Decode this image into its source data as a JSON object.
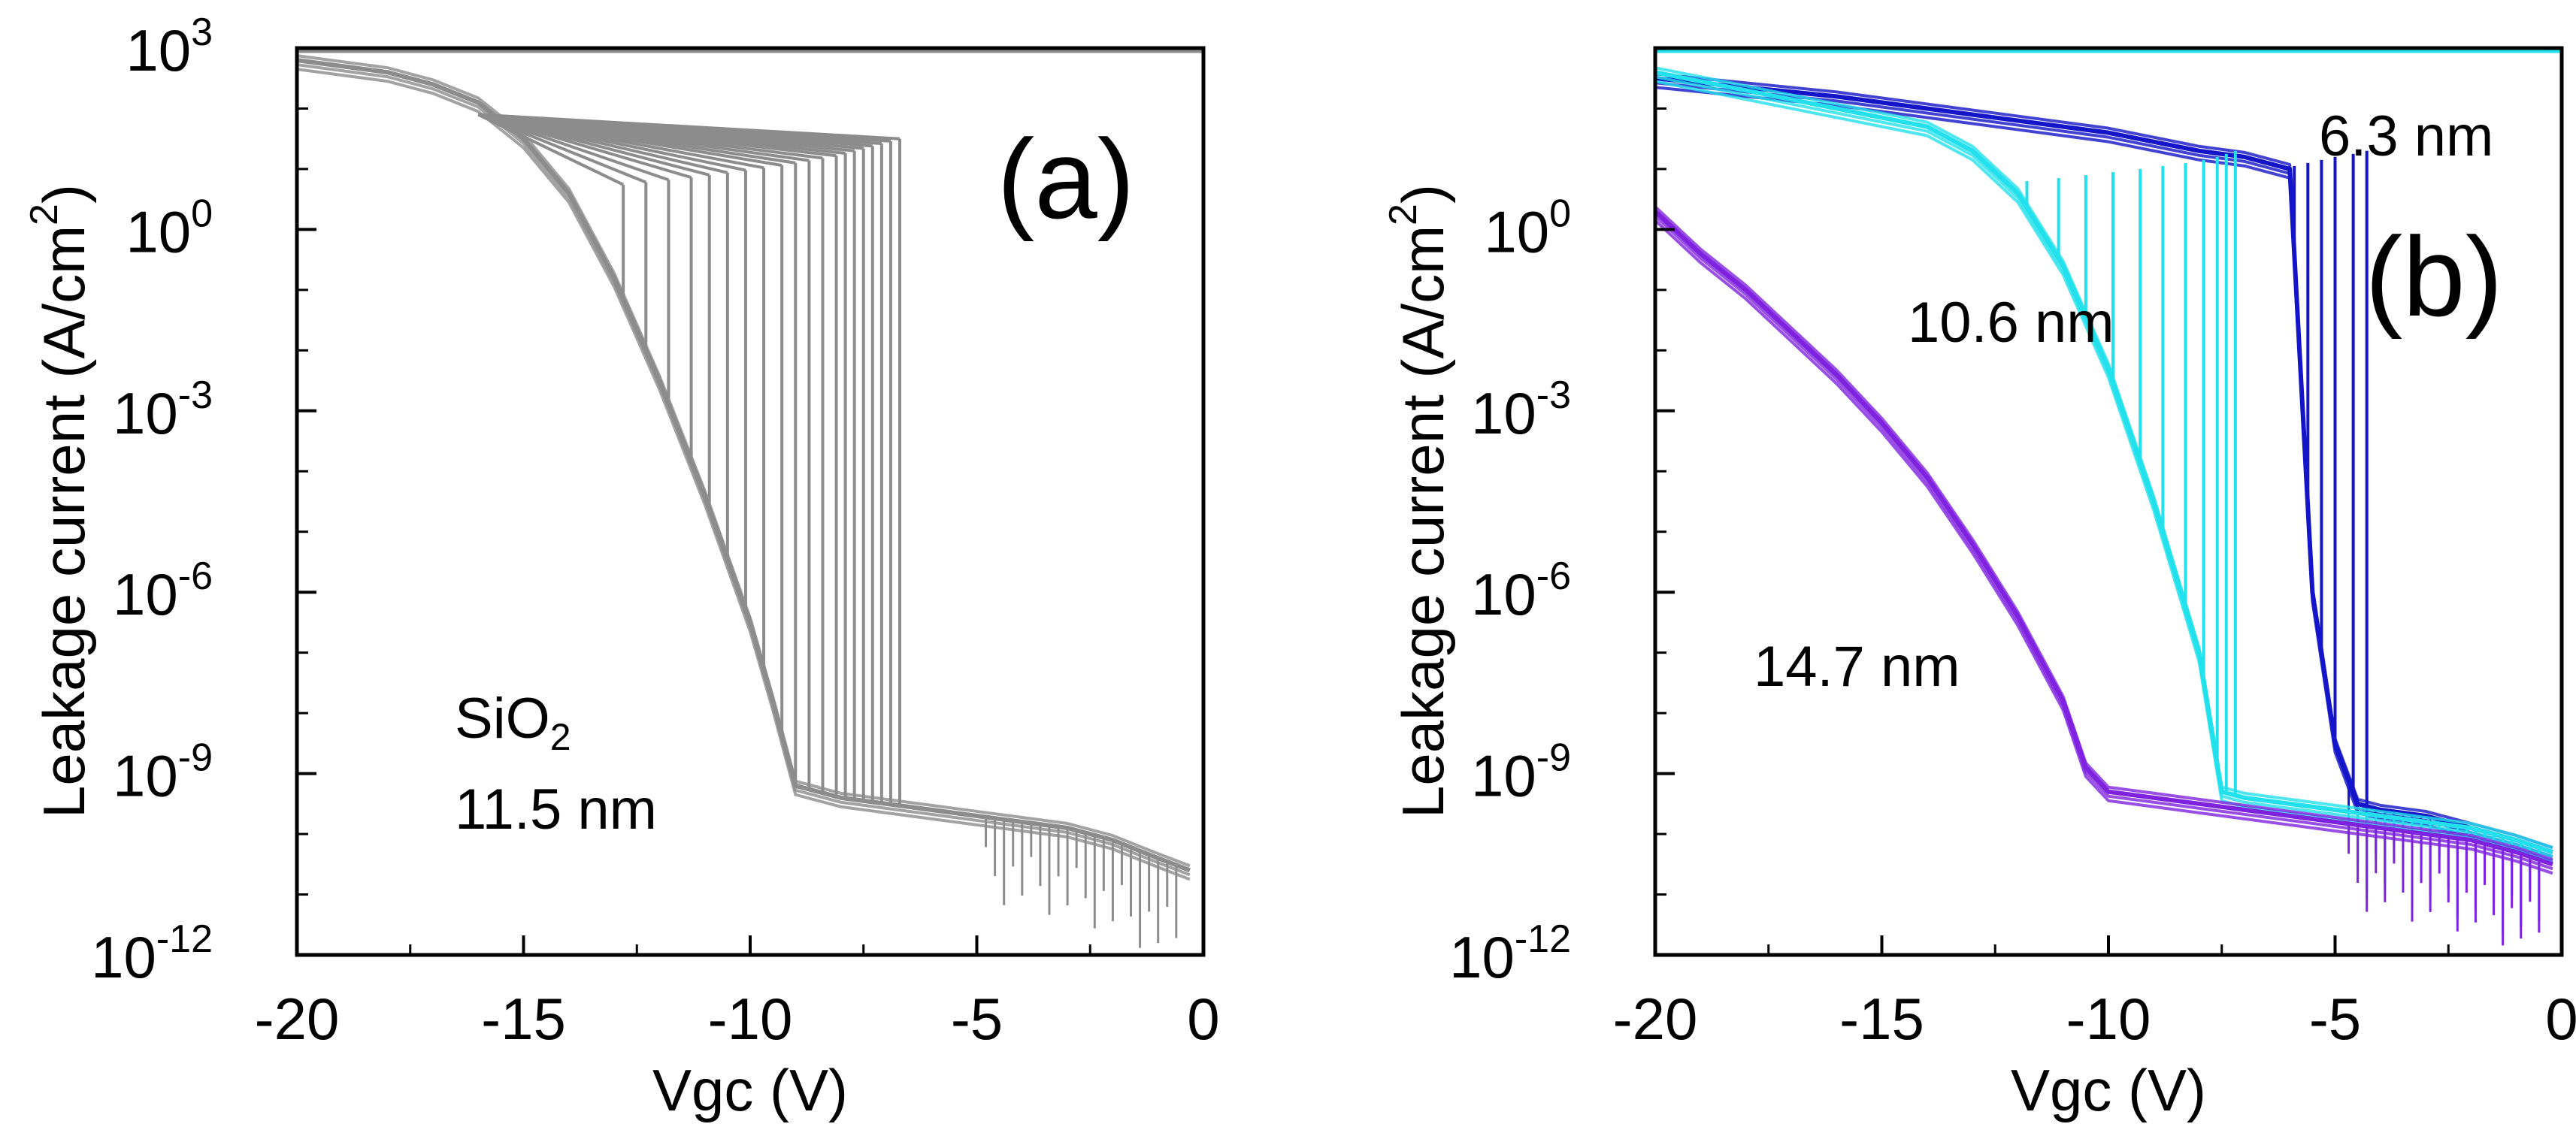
{
  "chart_data": [
    {
      "type": "line",
      "panel_label": "(a)",
      "xlabel": "Vgc (V)",
      "ylabel": "Leakage current (A/cm",
      "ylabel_sup": "2",
      "ylabel_close": ")",
      "xlim": [
        -20,
        0
      ],
      "ylim_log10": [
        -12,
        3
      ],
      "x_ticks": [
        {
          "v": -20,
          "label": "-20"
        },
        {
          "v": -15,
          "label": "-15"
        },
        {
          "v": -10,
          "label": "-10"
        },
        {
          "v": -5,
          "label": "-5"
        },
        {
          "v": 0,
          "label": "0"
        }
      ],
      "y_ticks": [
        {
          "exp": 3,
          "base": "10",
          "sup": "3"
        },
        {
          "exp": 0,
          "base": "10",
          "sup": "0"
        },
        {
          "exp": -3,
          "base": "10",
          "sup": "-3"
        },
        {
          "exp": -6,
          "base": "10",
          "sup": "-6"
        },
        {
          "exp": -9,
          "base": "10",
          "sup": "-9"
        },
        {
          "exp": -12,
          "base": "10",
          "sup": "-12"
        }
      ],
      "annotations": [
        {
          "id": "material",
          "text": "SiO",
          "sub": "2"
        },
        {
          "id": "thickness",
          "text": "11.5 nm"
        }
      ],
      "series": [
        {
          "name": "SiO2 11.5 nm",
          "color": "#8c8c8c",
          "x": [
            -20,
            -19,
            -18,
            -17,
            -16,
            -15,
            -14,
            -13,
            -12,
            -11,
            -10,
            -9.5,
            -9,
            -8,
            -7,
            -6,
            -5,
            -4,
            -3,
            -2,
            -1,
            -0.3
          ],
          "log10_J": [
            2.8,
            2.7,
            2.6,
            2.4,
            2.1,
            1.5,
            0.6,
            -0.8,
            -2.5,
            -4.4,
            -6.5,
            -7.8,
            -9.2,
            -9.4,
            -9.5,
            -9.6,
            -9.7,
            -9.8,
            -9.9,
            -10.1,
            -10.4,
            -10.6
          ],
          "breakdown_V": [
            -6.7,
            -6.9,
            -7.1,
            -7.3,
            -7.5,
            -7.7,
            -7.9,
            -8.1,
            -8.4,
            -8.7,
            -9.0,
            -9.3,
            -9.7,
            -10.1,
            -10.5,
            -10.9,
            -11.3,
            -11.8,
            -12.3,
            -12.8
          ],
          "pre_breakdown_log10_J": 1.5,
          "compliance_log10_J": 3
        }
      ]
    },
    {
      "type": "line",
      "panel_label": "(b)",
      "xlabel": "Vgc (V)",
      "ylabel": "Leakage current (A/cm",
      "ylabel_sup": "2",
      "ylabel_close": ")",
      "xlim": [
        -20,
        0
      ],
      "ylim_log10": [
        -12,
        3
      ],
      "x_ticks": [
        {
          "v": -20,
          "label": "-20"
        },
        {
          "v": -15,
          "label": "-15"
        },
        {
          "v": -10,
          "label": "-10"
        },
        {
          "v": -5,
          "label": "-5"
        },
        {
          "v": 0,
          "label": "0"
        }
      ],
      "y_ticks": [
        {
          "exp": 0,
          "base": "10",
          "sup": "0"
        },
        {
          "exp": -3,
          "base": "10",
          "sup": "-3"
        },
        {
          "exp": -6,
          "base": "10",
          "sup": "-6"
        },
        {
          "exp": -9,
          "base": "10",
          "sup": "-9"
        },
        {
          "exp": -12,
          "base": "10",
          "sup": "-12"
        }
      ],
      "annotations": [
        {
          "id": "label-6-3",
          "text": "6.3 nm"
        },
        {
          "id": "label-10-6",
          "text": "10.6 nm"
        },
        {
          "id": "label-14-7",
          "text": "14.7 nm"
        }
      ],
      "series": [
        {
          "name": "6.3 nm",
          "color": "#1414c8",
          "x": [
            -20,
            -16,
            -14,
            -12,
            -10,
            -8,
            -7,
            -6,
            -5.5,
            -5,
            -4.5,
            -4,
            -3,
            -2,
            -1,
            -0.2
          ],
          "log10_J": [
            2.5,
            2.2,
            2.0,
            1.8,
            1.6,
            1.3,
            1.2,
            1.0,
            -6,
            -8.5,
            -9.5,
            -9.6,
            -9.7,
            -9.9,
            -10.1,
            -10.3
          ],
          "breakdown_V": [
            -4.3,
            -4.6,
            -5.0,
            -5.3,
            -5.6,
            -5.9,
            -6.2,
            -6.5,
            -6.8
          ],
          "compliance_log10_J": 3
        },
        {
          "name": "10.6 nm",
          "color": "#22e1ec",
          "x": [
            -20,
            -18,
            -16,
            -14,
            -13,
            -12,
            -11,
            -10,
            -9,
            -8,
            -7.5,
            -7,
            -6,
            -5,
            -4,
            -3,
            -2,
            -1,
            -0.2
          ],
          "log10_J": [
            2.6,
            2.3,
            2.0,
            1.7,
            1.3,
            0.6,
            -0.6,
            -2.3,
            -4.5,
            -7.0,
            -9.3,
            -9.4,
            -9.5,
            -9.6,
            -9.7,
            -9.8,
            -9.9,
            -10.1,
            -10.3
          ],
          "breakdown_V": [
            -7.2,
            -7.4,
            -7.6,
            -7.9,
            -8.3,
            -8.8,
            -9.3,
            -9.9,
            -10.5,
            -11.1,
            -11.8,
            -12.6,
            -13.4,
            -14.2
          ],
          "compliance_log10_J": 3
        },
        {
          "name": "14.7 nm",
          "color": "#7f22e0",
          "x": [
            -20,
            -19,
            -18,
            -17,
            -16,
            -15,
            -14,
            -13,
            -12,
            -11,
            -10.5,
            -10,
            -9,
            -8,
            -7,
            -6,
            -5,
            -4,
            -3,
            -2,
            -1,
            -0.2
          ],
          "log10_J": [
            0.3,
            -0.4,
            -1.0,
            -1.7,
            -2.4,
            -3.2,
            -4.1,
            -5.2,
            -6.4,
            -7.8,
            -8.9,
            -9.3,
            -9.4,
            -9.5,
            -9.6,
            -9.7,
            -9.8,
            -9.9,
            -10.0,
            -10.1,
            -10.3,
            -10.5
          ],
          "compliance_log10_J": 3
        }
      ]
    }
  ]
}
